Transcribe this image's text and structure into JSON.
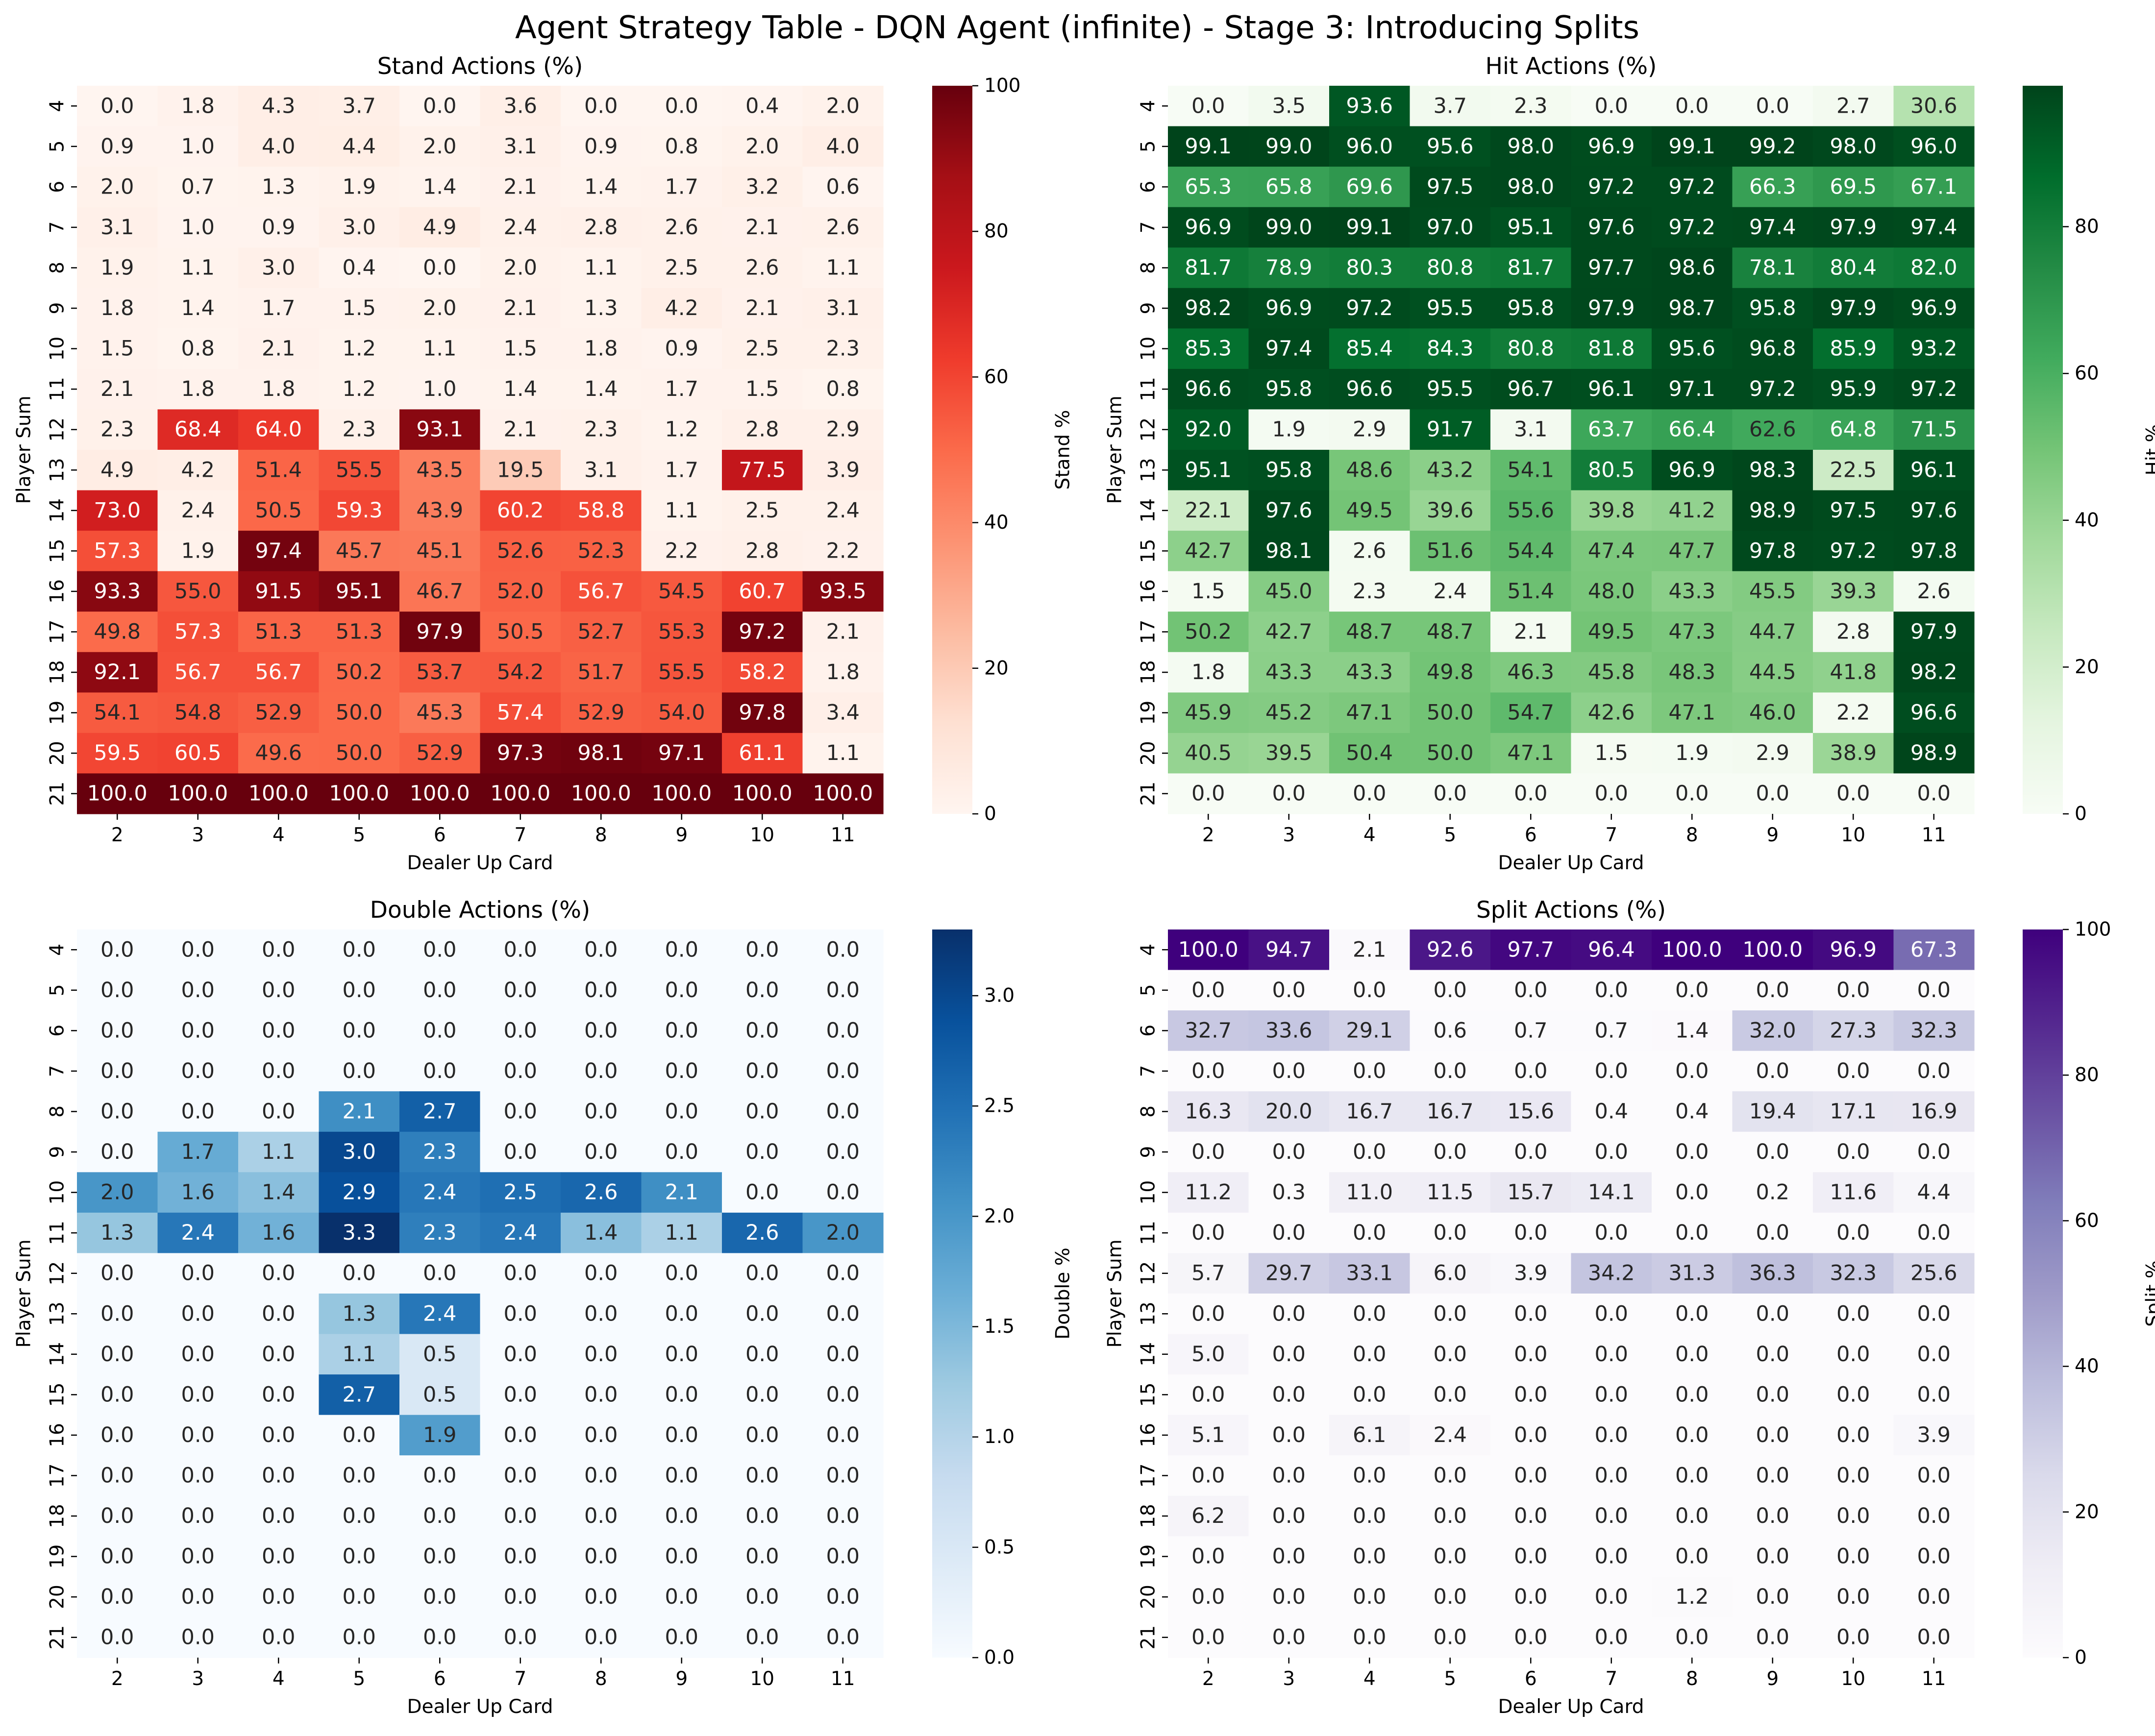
{
  "figure": {
    "suptitle": "Agent Strategy Table - DQN Agent (infinite) - Stage 3: Introducing Splits"
  },
  "chart_data": [
    {
      "type": "heatmap",
      "title": "Stand Actions (%)",
      "xlabel": "Dealer Up Card",
      "ylabel": "Player Sum",
      "colorbar_label": "Stand %",
      "colormap": "Reds",
      "vmin": 0,
      "vmax": 100,
      "colorbar_ticks": [
        "0",
        "20",
        "40",
        "60",
        "80",
        "100"
      ],
      "x": [
        "2",
        "3",
        "4",
        "5",
        "6",
        "7",
        "8",
        "9",
        "10",
        "11"
      ],
      "y": [
        "4",
        "5",
        "6",
        "7",
        "8",
        "9",
        "10",
        "11",
        "12",
        "13",
        "14",
        "15",
        "16",
        "17",
        "18",
        "19",
        "20",
        "21"
      ],
      "values": [
        [
          0.0,
          1.8,
          4.3,
          3.7,
          0.0,
          3.6,
          0.0,
          0.0,
          0.4,
          2.0
        ],
        [
          0.9,
          1.0,
          4.0,
          4.4,
          2.0,
          3.1,
          0.9,
          0.8,
          2.0,
          4.0
        ],
        [
          2.0,
          0.7,
          1.3,
          1.9,
          1.4,
          2.1,
          1.4,
          1.7,
          3.2,
          0.6
        ],
        [
          3.1,
          1.0,
          0.9,
          3.0,
          4.9,
          2.4,
          2.8,
          2.6,
          2.1,
          2.6
        ],
        [
          1.9,
          1.1,
          3.0,
          0.4,
          0.0,
          2.0,
          1.1,
          2.5,
          2.6,
          1.1
        ],
        [
          1.8,
          1.4,
          1.7,
          1.5,
          2.0,
          2.1,
          1.3,
          4.2,
          2.1,
          3.1
        ],
        [
          1.5,
          0.8,
          2.1,
          1.2,
          1.1,
          1.5,
          1.8,
          0.9,
          2.5,
          2.3
        ],
        [
          2.1,
          1.8,
          1.8,
          1.2,
          1.0,
          1.4,
          1.4,
          1.7,
          1.5,
          0.8
        ],
        [
          2.3,
          68.4,
          64.0,
          2.3,
          93.1,
          2.1,
          2.3,
          1.2,
          2.8,
          2.9
        ],
        [
          4.9,
          4.2,
          51.4,
          55.5,
          43.5,
          19.5,
          3.1,
          1.7,
          77.5,
          3.9
        ],
        [
          73.0,
          2.4,
          50.5,
          59.3,
          43.9,
          60.2,
          58.8,
          1.1,
          2.5,
          2.4
        ],
        [
          57.3,
          1.9,
          97.4,
          45.7,
          45.1,
          52.6,
          52.3,
          2.2,
          2.8,
          2.2
        ],
        [
          93.3,
          55.0,
          91.5,
          95.1,
          46.7,
          52.0,
          56.7,
          54.5,
          60.7,
          93.5
        ],
        [
          49.8,
          57.3,
          51.3,
          51.3,
          97.9,
          50.5,
          52.7,
          55.3,
          97.2,
          2.1
        ],
        [
          92.1,
          56.7,
          56.7,
          50.2,
          53.7,
          54.2,
          51.7,
          55.5,
          58.2,
          1.8
        ],
        [
          54.1,
          54.8,
          52.9,
          50.0,
          45.3,
          57.4,
          52.9,
          54.0,
          97.8,
          3.4
        ],
        [
          59.5,
          60.5,
          49.6,
          50.0,
          52.9,
          97.3,
          98.1,
          97.1,
          61.1,
          1.1
        ],
        [
          100.0,
          100.0,
          100.0,
          100.0,
          100.0,
          100.0,
          100.0,
          100.0,
          100.0,
          100.0
        ]
      ]
    },
    {
      "type": "heatmap",
      "title": "Hit Actions (%)",
      "xlabel": "Dealer Up Card",
      "ylabel": "Player Sum",
      "colorbar_label": "Hit %",
      "colormap": "Greens",
      "vmin": 0,
      "vmax": 99.2,
      "colorbar_ticks": [
        "0",
        "20",
        "40",
        "60",
        "80"
      ],
      "x": [
        "2",
        "3",
        "4",
        "5",
        "6",
        "7",
        "8",
        "9",
        "10",
        "11"
      ],
      "y": [
        "4",
        "5",
        "6",
        "7",
        "8",
        "9",
        "10",
        "11",
        "12",
        "13",
        "14",
        "15",
        "16",
        "17",
        "18",
        "19",
        "20",
        "21"
      ],
      "values": [
        [
          0.0,
          3.5,
          93.6,
          3.7,
          2.3,
          0.0,
          0.0,
          0.0,
          2.7,
          30.6
        ],
        [
          99.1,
          99.0,
          96.0,
          95.6,
          98.0,
          96.9,
          99.1,
          99.2,
          98.0,
          96.0
        ],
        [
          65.3,
          65.8,
          69.6,
          97.5,
          98.0,
          97.2,
          97.2,
          66.3,
          69.5,
          67.1
        ],
        [
          96.9,
          99.0,
          99.1,
          97.0,
          95.1,
          97.6,
          97.2,
          97.4,
          97.9,
          97.4
        ],
        [
          81.7,
          78.9,
          80.3,
          80.8,
          81.7,
          97.7,
          98.6,
          78.1,
          80.4,
          82.0
        ],
        [
          98.2,
          96.9,
          97.2,
          95.5,
          95.8,
          97.9,
          98.7,
          95.8,
          97.9,
          96.9
        ],
        [
          85.3,
          97.4,
          85.4,
          84.3,
          80.8,
          81.8,
          95.6,
          96.8,
          85.9,
          93.2
        ],
        [
          96.6,
          95.8,
          96.6,
          95.5,
          96.7,
          96.1,
          97.1,
          97.2,
          95.9,
          97.2
        ],
        [
          92.0,
          1.9,
          2.9,
          91.7,
          3.1,
          63.7,
          66.4,
          62.6,
          64.8,
          71.5
        ],
        [
          95.1,
          95.8,
          48.6,
          43.2,
          54.1,
          80.5,
          96.9,
          98.3,
          22.5,
          96.1
        ],
        [
          22.1,
          97.6,
          49.5,
          39.6,
          55.6,
          39.8,
          41.2,
          98.9,
          97.5,
          97.6
        ],
        [
          42.7,
          98.1,
          2.6,
          51.6,
          54.4,
          47.4,
          47.7,
          97.8,
          97.2,
          97.8
        ],
        [
          1.5,
          45.0,
          2.3,
          2.4,
          51.4,
          48.0,
          43.3,
          45.5,
          39.3,
          2.6
        ],
        [
          50.2,
          42.7,
          48.7,
          48.7,
          2.1,
          49.5,
          47.3,
          44.7,
          2.8,
          97.9
        ],
        [
          1.8,
          43.3,
          43.3,
          49.8,
          46.3,
          45.8,
          48.3,
          44.5,
          41.8,
          98.2
        ],
        [
          45.9,
          45.2,
          47.1,
          50.0,
          54.7,
          42.6,
          47.1,
          46.0,
          2.2,
          96.6
        ],
        [
          40.5,
          39.5,
          50.4,
          50.0,
          47.1,
          1.5,
          1.9,
          2.9,
          38.9,
          98.9
        ],
        [
          0.0,
          0.0,
          0.0,
          0.0,
          0.0,
          0.0,
          0.0,
          0.0,
          0.0,
          0.0
        ]
      ]
    },
    {
      "type": "heatmap",
      "title": "Double Actions (%)",
      "xlabel": "Dealer Up Card",
      "ylabel": "Player Sum",
      "colorbar_label": "Double %",
      "colormap": "Blues",
      "vmin": 0,
      "vmax": 3.3,
      "colorbar_ticks": [
        "0.0",
        "0.5",
        "1.0",
        "1.5",
        "2.0",
        "2.5",
        "3.0"
      ],
      "x": [
        "2",
        "3",
        "4",
        "5",
        "6",
        "7",
        "8",
        "9",
        "10",
        "11"
      ],
      "y": [
        "4",
        "5",
        "6",
        "7",
        "8",
        "9",
        "10",
        "11",
        "12",
        "13",
        "14",
        "15",
        "16",
        "17",
        "18",
        "19",
        "20",
        "21"
      ],
      "values": [
        [
          0.0,
          0.0,
          0.0,
          0.0,
          0.0,
          0.0,
          0.0,
          0.0,
          0.0,
          0.0
        ],
        [
          0.0,
          0.0,
          0.0,
          0.0,
          0.0,
          0.0,
          0.0,
          0.0,
          0.0,
          0.0
        ],
        [
          0.0,
          0.0,
          0.0,
          0.0,
          0.0,
          0.0,
          0.0,
          0.0,
          0.0,
          0.0
        ],
        [
          0.0,
          0.0,
          0.0,
          0.0,
          0.0,
          0.0,
          0.0,
          0.0,
          0.0,
          0.0
        ],
        [
          0.0,
          0.0,
          0.0,
          2.1,
          2.7,
          0.0,
          0.0,
          0.0,
          0.0,
          0.0
        ],
        [
          0.0,
          1.7,
          1.1,
          3.0,
          2.3,
          0.0,
          0.0,
          0.0,
          0.0,
          0.0
        ],
        [
          2.0,
          1.6,
          1.4,
          2.9,
          2.4,
          2.5,
          2.6,
          2.1,
          0.0,
          0.0
        ],
        [
          1.3,
          2.4,
          1.6,
          3.3,
          2.3,
          2.4,
          1.4,
          1.1,
          2.6,
          2.0
        ],
        [
          0.0,
          0.0,
          0.0,
          0.0,
          0.0,
          0.0,
          0.0,
          0.0,
          0.0,
          0.0
        ],
        [
          0.0,
          0.0,
          0.0,
          1.3,
          2.4,
          0.0,
          0.0,
          0.0,
          0.0,
          0.0
        ],
        [
          0.0,
          0.0,
          0.0,
          1.1,
          0.5,
          0.0,
          0.0,
          0.0,
          0.0,
          0.0
        ],
        [
          0.0,
          0.0,
          0.0,
          2.7,
          0.5,
          0.0,
          0.0,
          0.0,
          0.0,
          0.0
        ],
        [
          0.0,
          0.0,
          0.0,
          0.0,
          1.9,
          0.0,
          0.0,
          0.0,
          0.0,
          0.0
        ],
        [
          0.0,
          0.0,
          0.0,
          0.0,
          0.0,
          0.0,
          0.0,
          0.0,
          0.0,
          0.0
        ],
        [
          0.0,
          0.0,
          0.0,
          0.0,
          0.0,
          0.0,
          0.0,
          0.0,
          0.0,
          0.0
        ],
        [
          0.0,
          0.0,
          0.0,
          0.0,
          0.0,
          0.0,
          0.0,
          0.0,
          0.0,
          0.0
        ],
        [
          0.0,
          0.0,
          0.0,
          0.0,
          0.0,
          0.0,
          0.0,
          0.0,
          0.0,
          0.0
        ],
        [
          0.0,
          0.0,
          0.0,
          0.0,
          0.0,
          0.0,
          0.0,
          0.0,
          0.0,
          0.0
        ]
      ]
    },
    {
      "type": "heatmap",
      "title": "Split Actions (%)",
      "xlabel": "Dealer Up Card",
      "ylabel": "Player Sum",
      "colorbar_label": "Split %",
      "colormap": "Purples",
      "vmin": 0,
      "vmax": 100,
      "colorbar_ticks": [
        "0",
        "20",
        "40",
        "60",
        "80",
        "100"
      ],
      "x": [
        "2",
        "3",
        "4",
        "5",
        "6",
        "7",
        "8",
        "9",
        "10",
        "11"
      ],
      "y": [
        "4",
        "5",
        "6",
        "7",
        "8",
        "9",
        "10",
        "11",
        "12",
        "13",
        "14",
        "15",
        "16",
        "17",
        "18",
        "19",
        "20",
        "21"
      ],
      "values": [
        [
          100.0,
          94.7,
          2.1,
          92.6,
          97.7,
          96.4,
          100.0,
          100.0,
          96.9,
          67.3
        ],
        [
          0.0,
          0.0,
          0.0,
          0.0,
          0.0,
          0.0,
          0.0,
          0.0,
          0.0,
          0.0
        ],
        [
          32.7,
          33.6,
          29.1,
          0.6,
          0.7,
          0.7,
          1.4,
          32.0,
          27.3,
          32.3
        ],
        [
          0.0,
          0.0,
          0.0,
          0.0,
          0.0,
          0.0,
          0.0,
          0.0,
          0.0,
          0.0
        ],
        [
          16.3,
          20.0,
          16.7,
          16.7,
          15.6,
          0.4,
          0.4,
          19.4,
          17.1,
          16.9
        ],
        [
          0.0,
          0.0,
          0.0,
          0.0,
          0.0,
          0.0,
          0.0,
          0.0,
          0.0,
          0.0
        ],
        [
          11.2,
          0.3,
          11.0,
          11.5,
          15.7,
          14.1,
          0.0,
          0.2,
          11.6,
          4.4
        ],
        [
          0.0,
          0.0,
          0.0,
          0.0,
          0.0,
          0.0,
          0.0,
          0.0,
          0.0,
          0.0
        ],
        [
          5.7,
          29.7,
          33.1,
          6.0,
          3.9,
          34.2,
          31.3,
          36.3,
          32.3,
          25.6
        ],
        [
          0.0,
          0.0,
          0.0,
          0.0,
          0.0,
          0.0,
          0.0,
          0.0,
          0.0,
          0.0
        ],
        [
          5.0,
          0.0,
          0.0,
          0.0,
          0.0,
          0.0,
          0.0,
          0.0,
          0.0,
          0.0
        ],
        [
          0.0,
          0.0,
          0.0,
          0.0,
          0.0,
          0.0,
          0.0,
          0.0,
          0.0,
          0.0
        ],
        [
          5.1,
          0.0,
          6.1,
          2.4,
          0.0,
          0.0,
          0.0,
          0.0,
          0.0,
          3.9
        ],
        [
          0.0,
          0.0,
          0.0,
          0.0,
          0.0,
          0.0,
          0.0,
          0.0,
          0.0,
          0.0
        ],
        [
          6.2,
          0.0,
          0.0,
          0.0,
          0.0,
          0.0,
          0.0,
          0.0,
          0.0,
          0.0
        ],
        [
          0.0,
          0.0,
          0.0,
          0.0,
          0.0,
          0.0,
          0.0,
          0.0,
          0.0,
          0.0
        ],
        [
          0.0,
          0.0,
          0.0,
          0.0,
          0.0,
          0.0,
          1.2,
          0.0,
          0.0,
          0.0
        ],
        [
          0.0,
          0.0,
          0.0,
          0.0,
          0.0,
          0.0,
          0.0,
          0.0,
          0.0,
          0.0
        ]
      ]
    }
  ]
}
